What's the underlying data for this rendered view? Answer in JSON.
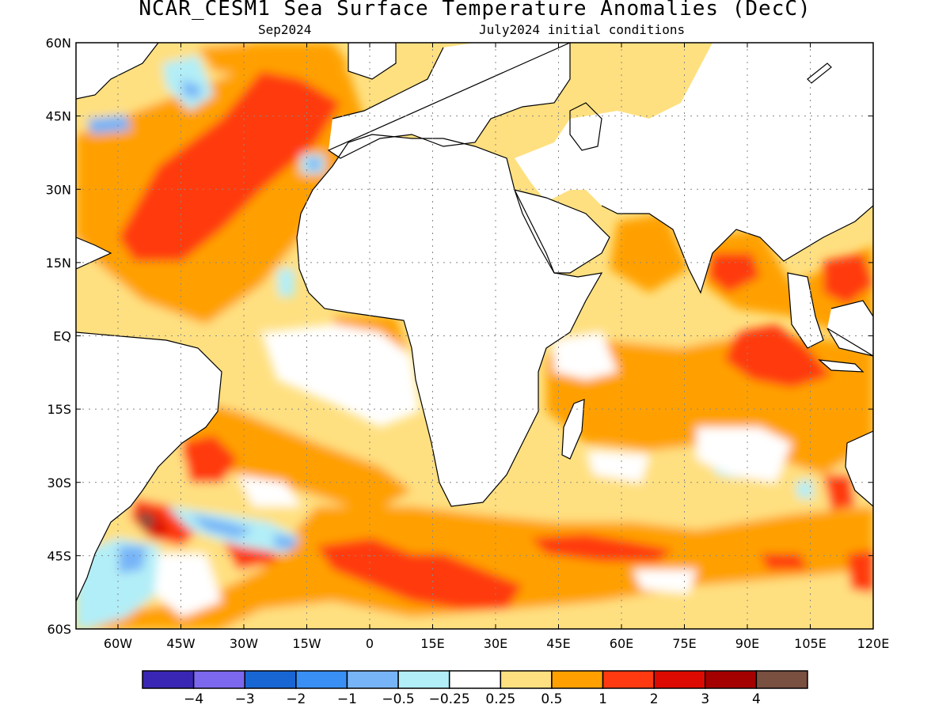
{
  "header": {
    "title": "NCAR_CESM1 Sea Surface Temperature Anomalies (DecC)",
    "valid_month": "Sep2024",
    "init_label": "July2024 initial conditions"
  },
  "map": {
    "lon_labels": [
      "60W",
      "45W",
      "30W",
      "15W",
      "0",
      "15E",
      "30E",
      "45E",
      "60E",
      "75E",
      "90E",
      "105E",
      "120E"
    ],
    "lat_labels": [
      "60N",
      "45N",
      "30N",
      "15N",
      "EQ",
      "15S",
      "30S",
      "45S",
      "60S"
    ],
    "colorbar": {
      "colors": [
        "#3a26b4",
        "#7b68ee",
        "#1866d4",
        "#3a8ff5",
        "#77b4f7",
        "#b2eef7",
        "#ffffff",
        "#ffe080",
        "#ffa000",
        "#ff3a10",
        "#dc0a00",
        "#a50000",
        "#7a5040"
      ],
      "tick_labels": [
        "−4",
        "−3",
        "−2",
        "−1",
        "−0.5",
        "−0.25",
        "0.25",
        "0.5",
        "1",
        "2",
        "3",
        "4"
      ]
    },
    "land_color": "#ffffff",
    "coastline_color": "#000000"
  }
}
